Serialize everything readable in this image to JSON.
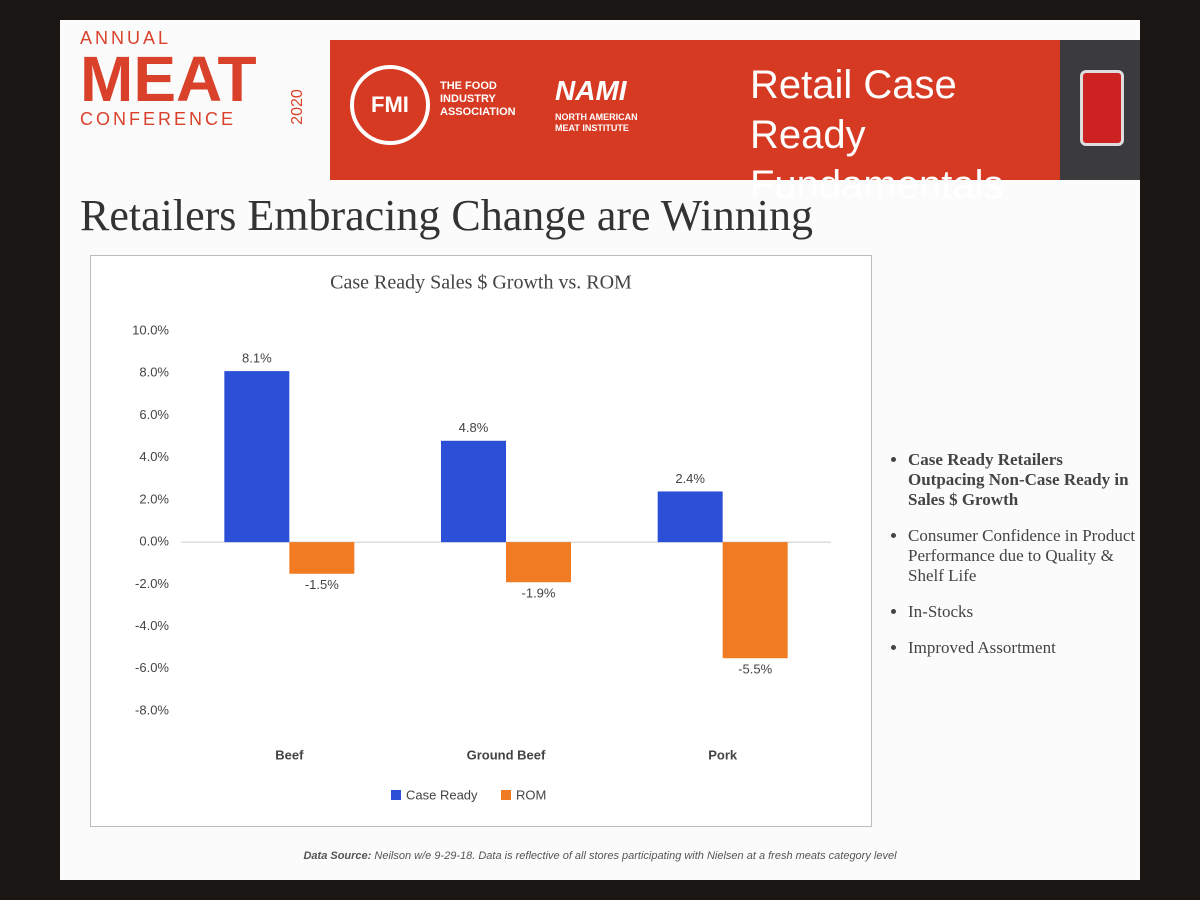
{
  "slide": {
    "logo": {
      "annual": "ANNUAL",
      "meat": "MEAT",
      "conference": "CONFERENCE",
      "year": "2020"
    },
    "fmi": {
      "mark": "FMI",
      "name": "THE FOOD INDUSTRY ASSOCIATION"
    },
    "nami": {
      "mark": "NAMI",
      "name": "NORTH AMERICAN MEAT INSTITUTE"
    },
    "banner_title": "Retail Case Ready Fundamentals",
    "title": "Retailers Embracing Change are Winning",
    "bullets": [
      "Case Ready Retailers Outpacing Non-Case Ready in Sales $ Growth",
      "Consumer Confidence in Product Performance due to Quality & Shelf Life",
      "In-Stocks",
      "Improved Assortment"
    ],
    "source_label": "Data Source:",
    "source_text": "Neilson w/e 9-29-18. Data is reflective of all stores participating with Nielsen at a fresh meats category level"
  },
  "chart_data": {
    "type": "bar",
    "title": "Case Ready Sales $ Growth vs. ROM",
    "categories": [
      "Beef",
      "Ground Beef",
      "Pork"
    ],
    "series": [
      {
        "name": "Case Ready",
        "color": "#2b4fd6",
        "values": [
          8.1,
          4.8,
          2.4
        ],
        "value_labels": [
          "8.1%",
          "4.8%",
          "2.4%"
        ]
      },
      {
        "name": "ROM",
        "color": "#f07b22",
        "values": [
          -1.5,
          -1.9,
          -5.5
        ],
        "value_labels": [
          "-1.5%",
          "-1.9%",
          "-5.5%"
        ]
      }
    ],
    "ylim": [
      -8,
      10
    ],
    "yticks": [
      {
        "value": 10,
        "label": "10.0%"
      },
      {
        "value": 8,
        "label": "8.0%"
      },
      {
        "value": 6,
        "label": "6.0%"
      },
      {
        "value": 4,
        "label": "4.0%"
      },
      {
        "value": 2,
        "label": "2.0%"
      },
      {
        "value": 0,
        "label": "0.0%"
      },
      {
        "value": -2,
        "label": "-2.0%"
      },
      {
        "value": -4,
        "label": "-4.0%"
      },
      {
        "value": -6,
        "label": "-6.0%"
      },
      {
        "value": -8,
        "label": "-8.0%"
      }
    ],
    "legend": "bottom"
  }
}
